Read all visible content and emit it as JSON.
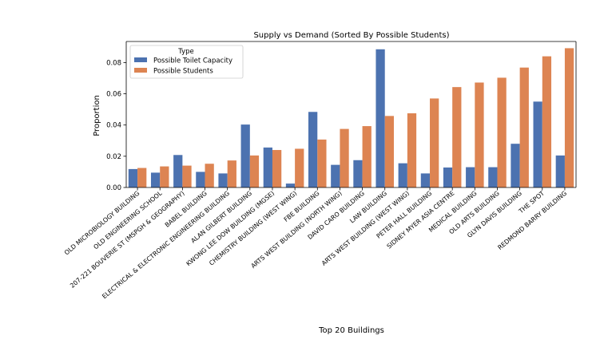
{
  "chart_data": {
    "type": "bar",
    "title": "Supply vs Demand (Sorted By Possible Students)",
    "xlabel": "Top 20 Buildings",
    "ylabel": "Proportion",
    "ylim": [
      0,
      0.0935
    ],
    "yticks": [
      "0.00",
      "0.02",
      "0.04",
      "0.06",
      "0.08"
    ],
    "grid": false,
    "legend": {
      "title": "Type",
      "position": "top-left"
    },
    "categories": [
      "OLD MICROBIOLOGY BUILDING",
      "OLD ENGINEERING SCHOOL",
      "207-221 BOUVERIE ST (MSPGH & GEOGRAPHY)",
      "BABEL BUILDING",
      "ELECTRICAL & ELECTRONIC ENGINEERING BUILDING",
      "ALAN GILBERT BUILDING",
      "KWONG LEE DOW BUILDING (MGSE)",
      "CHEMISTRY BUILDING (WEST WING)",
      "FBE BUILDING",
      "ARTS WEST BUILDING (NORTH WING)",
      "DAVID CARO BUILDING",
      "LAW BUILDING",
      "ARTS WEST BUILDING (WEST WING)",
      "PETER HALL BUILDING",
      "SIDNEY MYER ASIA CENTRE",
      "MEDICAL BUILDING",
      "OLD ARTS BUILDING",
      "GLYN DAVIS BUILDING",
      "THE SPOT",
      "REDMOND BARRY BUILDING"
    ],
    "series": [
      {
        "name": "Possible Toilet Capacity",
        "color": "#4c72b0",
        "values": [
          0.0118,
          0.0095,
          0.0208,
          0.01,
          0.009,
          0.0403,
          0.0256,
          0.0025,
          0.0484,
          0.0145,
          0.0175,
          0.0885,
          0.0155,
          0.009,
          0.0128,
          0.013,
          0.013,
          0.028,
          0.055,
          0.0205
        ]
      },
      {
        "name": "Possible Students",
        "color": "#dd8452",
        "values": [
          0.0125,
          0.0135,
          0.014,
          0.0152,
          0.0173,
          0.0205,
          0.024,
          0.0248,
          0.0307,
          0.0375,
          0.0393,
          0.0458,
          0.0475,
          0.057,
          0.0643,
          0.0672,
          0.0703,
          0.0768,
          0.084,
          0.0892
        ]
      }
    ]
  }
}
